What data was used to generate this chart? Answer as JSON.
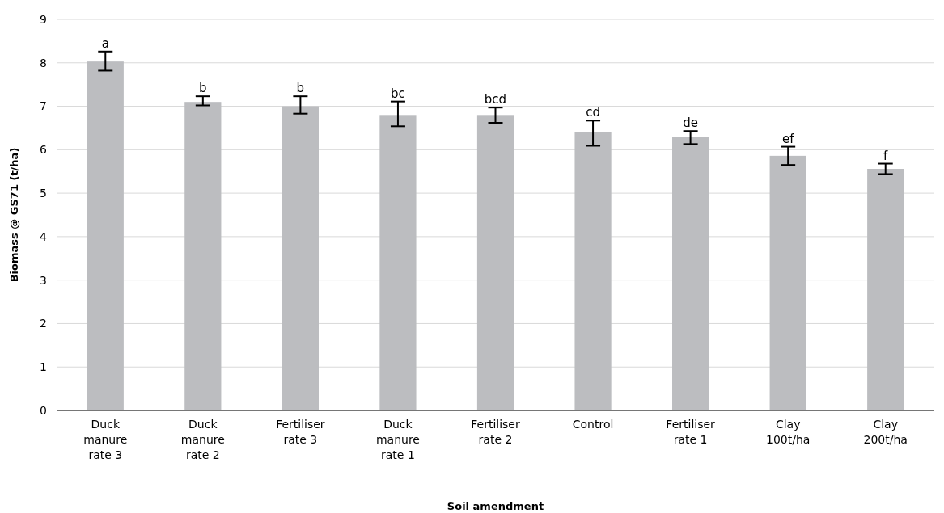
{
  "chart_data": {
    "type": "bar",
    "xlabel": "Soil amendment",
    "ylabel": "Biomass @ GS71 (t/ha)",
    "categories": [
      "Duck manure rate 3",
      "Duck manure rate 2",
      "Fertiliser rate 3",
      "Duck manure rate 1",
      "Fertiliser rate 2",
      "Control",
      "Fertiliser rate 1",
      "Clay 100t/ha",
      "Clay 200t/ha"
    ],
    "values": [
      8.03,
      7.1,
      7.0,
      6.8,
      6.8,
      6.4,
      6.3,
      5.86,
      5.56
    ],
    "errors": [
      [
        7.82,
        8.26
      ],
      [
        7.02,
        7.23
      ],
      [
        6.83,
        7.23
      ],
      [
        6.54,
        7.11
      ],
      [
        6.62,
        6.97
      ],
      [
        6.09,
        6.67
      ],
      [
        6.13,
        6.43
      ],
      [
        5.65,
        6.07
      ],
      [
        5.44,
        5.68
      ]
    ],
    "color": "#bcbdc0",
    "ylim": [
      0,
      9
    ],
    "yticks": [
      0,
      1,
      2,
      3,
      4,
      5,
      6,
      7,
      8,
      9
    ],
    "grid": "y",
    "annotations": [
      {
        "text": "a",
        "x": "Duck manure rate 3",
        "y": 8.26
      },
      {
        "text": "b",
        "x": "Duck manure rate 2",
        "y": 7.23
      },
      {
        "text": "b",
        "x": "Fertiliser rate 3",
        "y": 7.23
      },
      {
        "text": "bc",
        "x": "Duck manure rate 1",
        "y": 7.11
      },
      {
        "text": "bcd",
        "x": "Fertiliser rate 2",
        "y": 6.97
      },
      {
        "text": "cd",
        "x": "Control",
        "y": 6.67
      },
      {
        "text": "de",
        "x": "Fertiliser rate 1",
        "y": 6.43
      },
      {
        "text": "ef",
        "x": "Clay 100t/ha",
        "y": 6.07
      },
      {
        "text": "f",
        "x": "Clay 200t/ha",
        "y": 5.68
      }
    ]
  }
}
